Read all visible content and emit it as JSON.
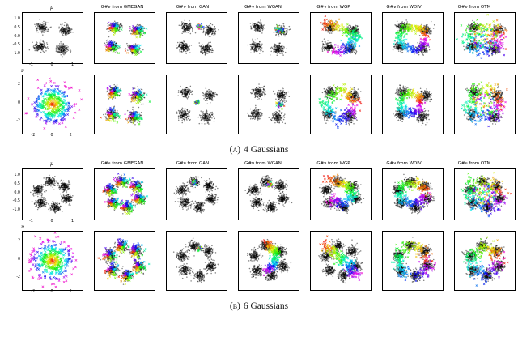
{
  "chart_data": {
    "type": "scatter",
    "panels": [
      {
        "id": "A",
        "caption_prefix": "(a)",
        "caption_text": "4 Gaussians",
        "columns": [
          "μ",
          "G#ν from GMEGAN",
          "G#ν from GAN",
          "G#ν from WGAN",
          "G#ν from WGP",
          "G#ν from WDIV",
          "G#ν from OTM"
        ],
        "cluster_centers": [
          [
            -0.5,
            0.62
          ],
          [
            0.62,
            0.45
          ],
          [
            -0.62,
            -0.5
          ],
          [
            0.45,
            -0.62
          ]
        ],
        "cluster_sigma": 0.14,
        "rows": [
          {
            "label": "μ",
            "ticks": {
              "domain": 1.45,
              "x": [
                "-1",
                "0",
                "1"
              ],
              "xv": [
                -1,
                0,
                1
              ],
              "y": [
                "1.0",
                "0.5",
                "0.0",
                "-0.5",
                "-1.0"
              ],
              "yv": [
                1,
                0.5,
                0,
                -0.5,
                -1
              ]
            },
            "cells": [
              {
                "type": "mu"
              },
              {
                "type": "gen",
                "pattern": "modes"
              },
              {
                "type": "gen",
                "pattern": "collapse",
                "at": [
                  0.15,
                  0.68
                ],
                "s": 0.07
              },
              {
                "type": "gen",
                "pattern": "collapse",
                "at": [
                  0.5,
                  0.48
                ],
                "s": 0.09
              },
              {
                "type": "gen",
                "pattern": "streak",
                "path": [
                  [
                    -0.85,
                    0.9
                  ],
                  [
                    0.1,
                    0.55
                  ],
                  [
                    0.75,
                    0.1
                  ],
                  [
                    0.35,
                    -0.6
                  ],
                  [
                    -0.3,
                    -0.85
                  ]
                ],
                "w": 0.16
              },
              {
                "type": "gen",
                "pattern": "ring",
                "c": [
                  0,
                  0
                ],
                "r": 0.62,
                "w": 0.12
              },
              {
                "type": "gen",
                "pattern": "spread",
                "c": [
                  0,
                  0
                ],
                "r": 0.7,
                "w": 0.22
              }
            ]
          },
          {
            "label": "ν",
            "ticks": {
              "domain": 3.2,
              "x": [
                "-2",
                "0",
                "2"
              ],
              "xv": [
                -2,
                0,
                2
              ],
              "y": [
                "2",
                "0",
                "-2"
              ],
              "yv": [
                2,
                0,
                -2
              ]
            },
            "cells": [
              {
                "type": "nu"
              },
              {
                "type": "gen",
                "pattern": "modes"
              },
              {
                "type": "gen",
                "pattern": "collapse",
                "at": [
                  0.02,
                  0.1
                ],
                "s": 0.05
              },
              {
                "type": "gen",
                "pattern": "collapse",
                "at": [
                  0.55,
                  -0.02
                ],
                "s": 0.07
              },
              {
                "type": "gen",
                "pattern": "ring",
                "c": [
                  0,
                  0
                ],
                "r": 0.85,
                "w": 0.14,
                "shape": "diamond"
              },
              {
                "type": "gen",
                "pattern": "ring",
                "c": [
                  -0.1,
                  0.05
                ],
                "r": 0.5,
                "w": 0.11
              },
              {
                "type": "gen",
                "pattern": "spread",
                "c": [
                  0,
                  0
                ],
                "r": 0.75,
                "w": 0.2
              }
            ]
          }
        ]
      },
      {
        "id": "B",
        "caption_prefix": "(b)",
        "caption_text": "6 Gaussians",
        "columns": [
          "μ",
          "G#ν from GMEGAN",
          "G#ν from GAN",
          "G#ν from WGAN",
          "G#ν from WGP",
          "G#ν from WDIV",
          "G#ν from OTM"
        ],
        "cluster_centers": [
          [
            -0.13,
            0.74
          ],
          [
            -0.7,
            0.26
          ],
          [
            -0.57,
            -0.48
          ],
          [
            0.13,
            -0.74
          ],
          [
            0.7,
            -0.26
          ],
          [
            0.57,
            0.48
          ]
        ],
        "cluster_sigma": 0.13,
        "rows": [
          {
            "label": "μ",
            "ticks": {
              "domain": 1.45,
              "x": [
                "-1",
                "0",
                "1"
              ],
              "xv": [
                -1,
                0,
                1
              ],
              "y": [
                "1.0",
                "0.5",
                "0.0",
                "-0.5",
                "-1.0"
              ],
              "yv": [
                1,
                0.5,
                0,
                -0.5,
                -1
              ]
            },
            "cells": [
              {
                "type": "mu"
              },
              {
                "type": "gen",
                "pattern": "modes"
              },
              {
                "type": "gen",
                "pattern": "collapse",
                "at": [
                  -0.12,
                  0.7
                ],
                "s": 0.06
              },
              {
                "type": "gen",
                "pattern": "collapse",
                "at": [
                  0.05,
                  0.55
                ],
                "s": 0.08
              },
              {
                "type": "gen",
                "pattern": "streak",
                "path": [
                  [
                    -0.6,
                    0.85
                  ],
                  [
                    0.25,
                    0.55
                  ],
                  [
                    0.65,
                    -0.05
                  ],
                  [
                    0.05,
                    -0.55
                  ],
                  [
                    -0.45,
                    -0.3
                  ]
                ],
                "w": 0.14
              },
              {
                "type": "gen",
                "pattern": "ring",
                "c": [
                  0,
                  0.05
                ],
                "r": 0.62,
                "w": 0.14
              },
              {
                "type": "gen",
                "pattern": "spread",
                "c": [
                  0,
                  0
                ],
                "r": 0.72,
                "w": 0.24
              }
            ]
          },
          {
            "label": "ν",
            "ticks": {
              "domain": 3.2,
              "x": [
                "-2",
                "0",
                "2"
              ],
              "xv": [
                -2,
                0,
                2
              ],
              "y": [
                "2",
                "0",
                "-2"
              ],
              "yv": [
                2,
                0,
                -2
              ]
            },
            "cells": [
              {
                "type": "nu"
              },
              {
                "type": "gen",
                "pattern": "modes"
              },
              {
                "type": "gen",
                "pattern": "collapse",
                "at": [
                  0.1,
                  0.62
                ],
                "s": 0.05
              },
              {
                "type": "gen",
                "pattern": "streak",
                "path": [
                  [
                    -0.15,
                    0.9
                  ],
                  [
                    0.35,
                    0.45
                  ],
                  [
                    0.25,
                    -0.2
                  ],
                  [
                    -0.1,
                    -0.5
                  ]
                ],
                "w": 0.1
              },
              {
                "type": "gen",
                "pattern": "streak",
                "path": [
                  [
                    -0.8,
                    0.85
                  ],
                  [
                    -0.2,
                    0.3
                  ],
                  [
                    0.45,
                    -0.25
                  ],
                  [
                    0.75,
                    -0.75
                  ]
                ],
                "w": 0.15
              },
              {
                "type": "gen",
                "pattern": "ring",
                "c": [
                  0,
                  0
                ],
                "r": 0.72,
                "w": 0.16
              },
              {
                "type": "gen",
                "pattern": "ring",
                "c": [
                  0,
                  0
                ],
                "r": 0.82,
                "w": 0.18,
                "shape": "diamond"
              }
            ]
          }
        ]
      }
    ]
  }
}
